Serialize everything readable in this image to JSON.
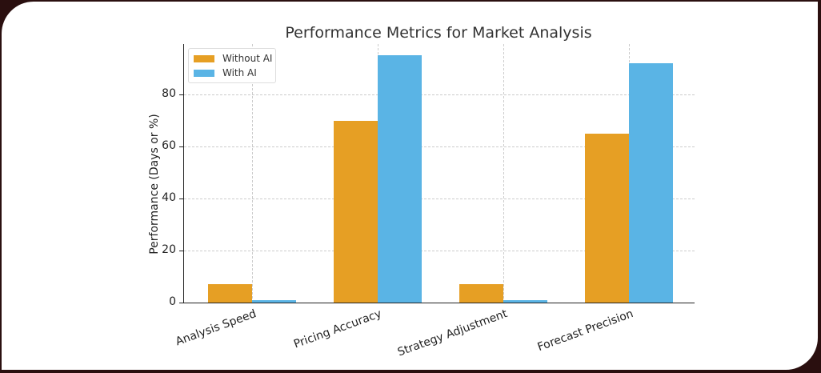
{
  "chart_data": {
    "type": "bar",
    "title": "Performance Metrics for Market Analysis",
    "xlabel": "",
    "ylabel": "Performance (Days or %)",
    "categories": [
      "Analysis Speed",
      "Pricing Accuracy",
      "Strategy Adjustment",
      "Forecast Precision"
    ],
    "series": [
      {
        "name": "Without AI",
        "color": "#E69F24",
        "values": [
          7,
          70,
          7,
          65
        ]
      },
      {
        "name": "With AI",
        "color": "#5AB4E5",
        "values": [
          1,
          95,
          1,
          92
        ]
      }
    ],
    "ylim": [
      0,
      99
    ],
    "yticks": [
      0,
      20,
      40,
      60,
      80
    ],
    "grid": true,
    "legend_position": "upper left"
  }
}
